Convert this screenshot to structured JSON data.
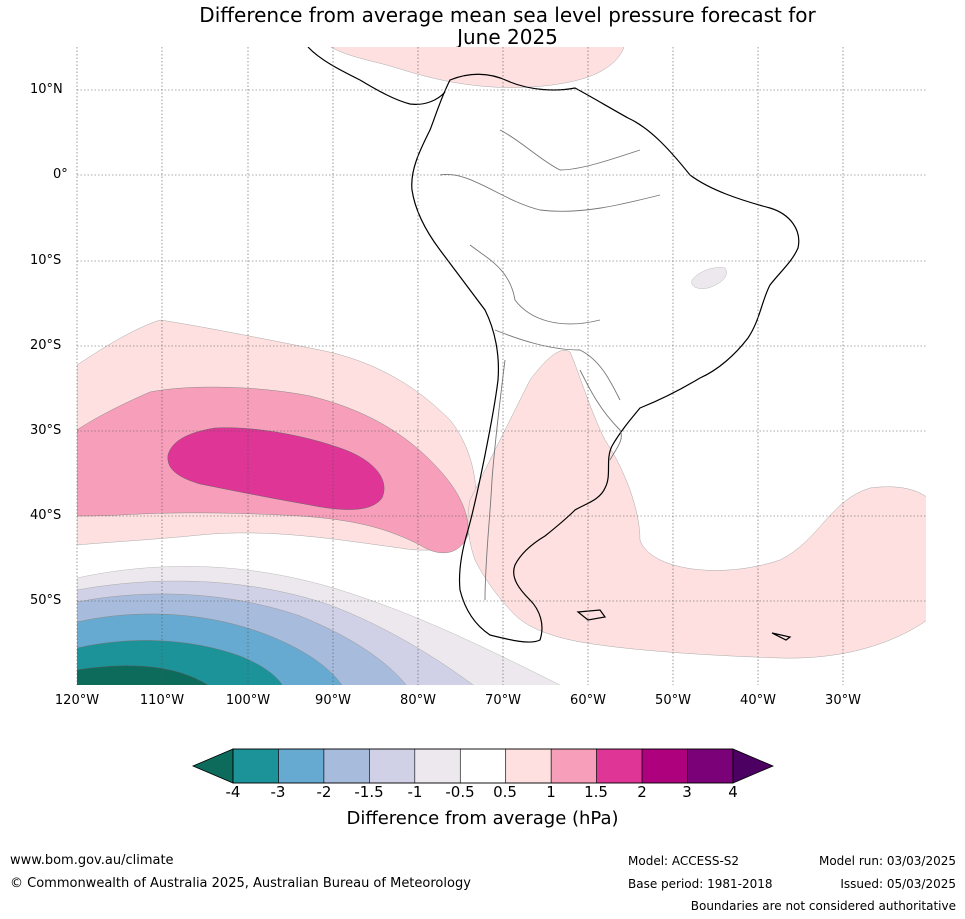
{
  "title_line1": "Difference from average mean sea level pressure forecast for",
  "title_line2": "June 2025",
  "lat_labels": [
    "10°N",
    "0°",
    "10°S",
    "20°S",
    "30°S",
    "40°S",
    "50°S"
  ],
  "lon_labels": [
    "120°W",
    "110°W",
    "100°W",
    "90°W",
    "80°W",
    "70°W",
    "60°W",
    "50°W",
    "40°W",
    "30°W"
  ],
  "colorbar": {
    "ticks": [
      "-4",
      "-3",
      "-2",
      "-1.5",
      "-1",
      "-0.5",
      "0.5",
      "1",
      "1.5",
      "2",
      "3",
      "4"
    ],
    "colors": [
      "#1b9399",
      "#67aad1",
      "#a7bcdc",
      "#d0d1e6",
      "#ede8ee",
      "#ffffff",
      "#fde0df",
      "#f79fba",
      "#de3597",
      "#ae017e",
      "#7a0177"
    ],
    "under_color": "#0d6b5c",
    "over_color": "#4b0062",
    "label": "Difference from average (hPa)"
  },
  "footer": {
    "website": "www.bom.gov.au/climate",
    "copyright": "© Commonwealth of Australia 2025, Australian Bureau of Meteorology",
    "model": "Model: ACCESS-S2",
    "base_period": "Base period: 1981-2018",
    "model_run": "Model run: 03/03/2025",
    "issued": "Issued: 05/03/2025",
    "disclaimer": "Boundaries are not considered authoritative"
  }
}
